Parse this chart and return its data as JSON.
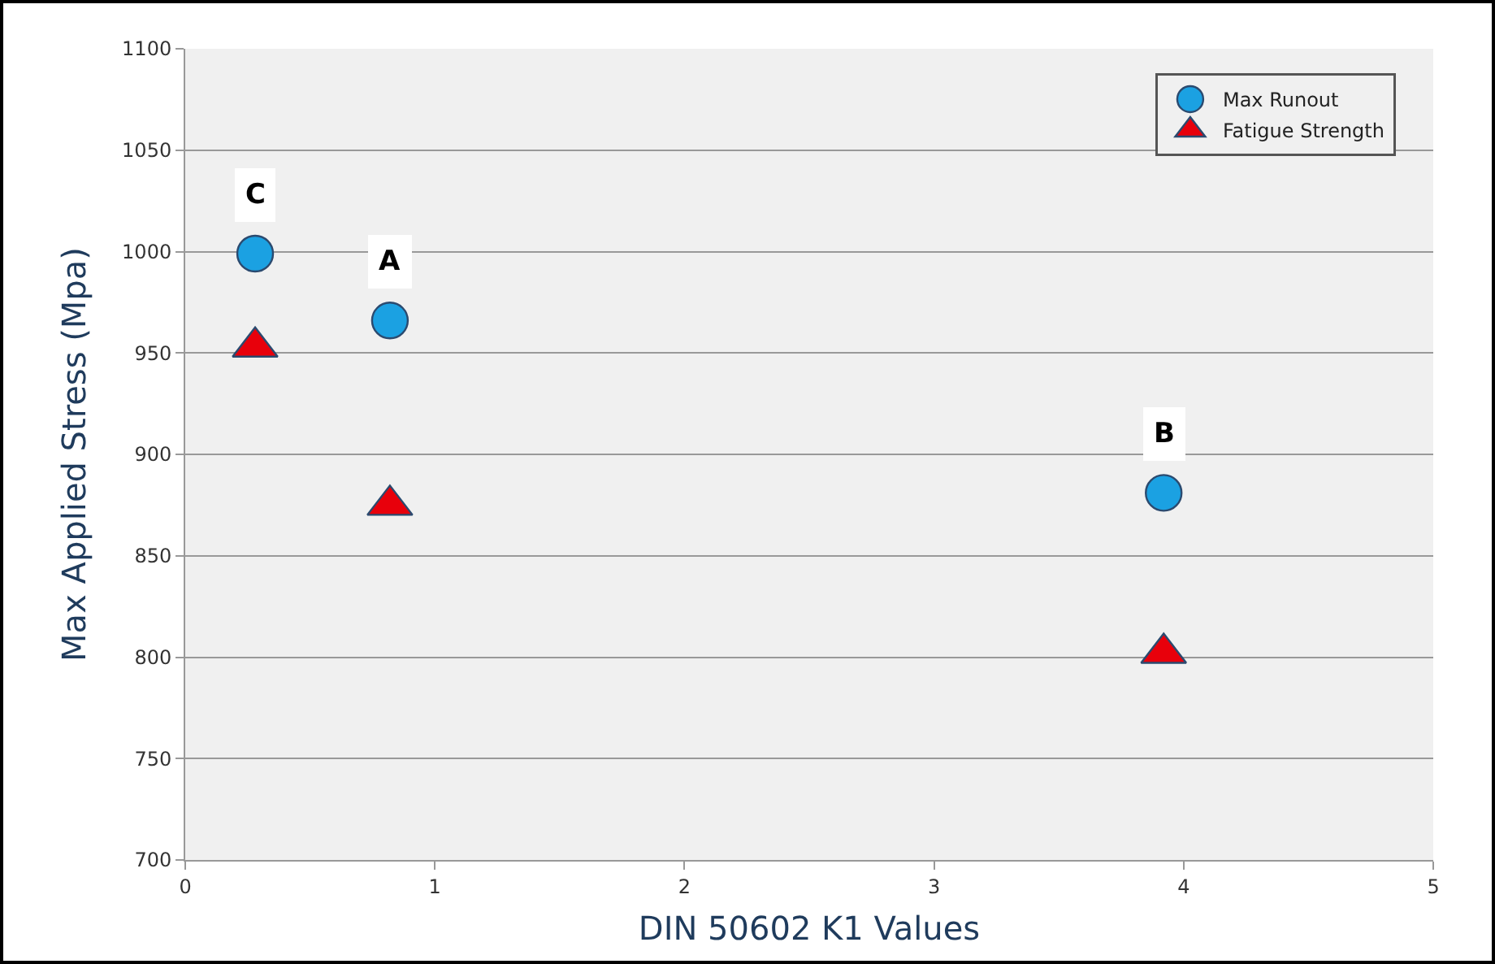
{
  "chart_data": {
    "type": "scatter",
    "xlabel": "DIN 50602 K1 Values",
    "ylabel": "Max Applied Stress (Mpa)",
    "series": [
      {
        "name": "Max Runout",
        "color": "#1ba1e2",
        "marker": "circle",
        "x": [
          0.28,
          0.82,
          3.92
        ],
        "values": [
          999,
          966,
          881
        ]
      },
      {
        "name": "Fatigue Strength",
        "color": "#e8000b",
        "marker": "triangle",
        "x": [
          0.28,
          0.82,
          3.92
        ],
        "values": [
          953,
          875,
          802
        ]
      }
    ],
    "annotations": [
      {
        "text": "C",
        "x": 0.28,
        "y": 999
      },
      {
        "text": "A",
        "x": 0.82,
        "y": 966
      },
      {
        "text": "B",
        "x": 3.92,
        "y": 881
      }
    ],
    "xlim": [
      0,
      5
    ],
    "xticks": [
      0,
      1,
      2,
      3,
      4,
      5
    ],
    "ylim": [
      700,
      1100
    ],
    "yticks": [
      700,
      750,
      800,
      850,
      900,
      950,
      1000,
      1050,
      1100
    ],
    "grid": "y",
    "legend": "top right"
  }
}
